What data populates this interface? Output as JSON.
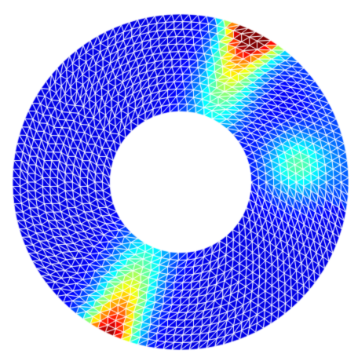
{
  "figure": {
    "kind": "finite-element triangular mesh on an annulus",
    "colormap": "jet",
    "background_color": "#ffffff",
    "mesh_line_color": "#ffffff",
    "base_field_color": "#1e2ab4"
  }
}
